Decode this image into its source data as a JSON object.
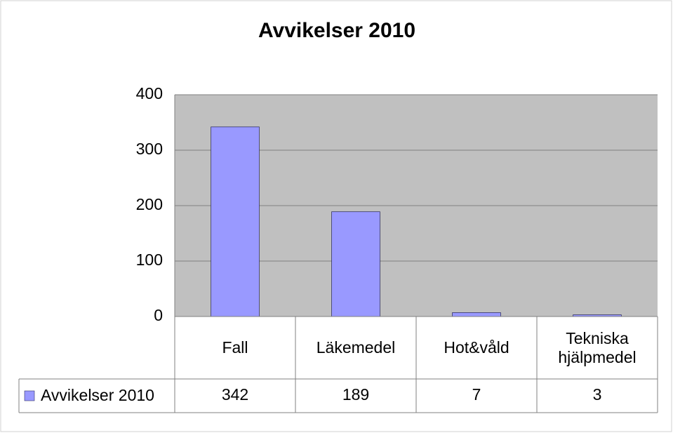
{
  "chart_data": {
    "type": "bar",
    "title": "Avvikelser 2010",
    "categories": [
      "Fall",
      "Läkemedel",
      "Hot&våld",
      "Tekniska hjälpmedel"
    ],
    "series": [
      {
        "name": "Avvikelser 2010",
        "color": "#9999ff",
        "values": [
          342,
          189,
          7,
          3
        ]
      }
    ],
    "ylim": [
      0,
      400
    ],
    "yticks": [
      0,
      100,
      200,
      300,
      400
    ],
    "grid": true,
    "plot_background": "#c0c0c0",
    "data_table": true
  }
}
